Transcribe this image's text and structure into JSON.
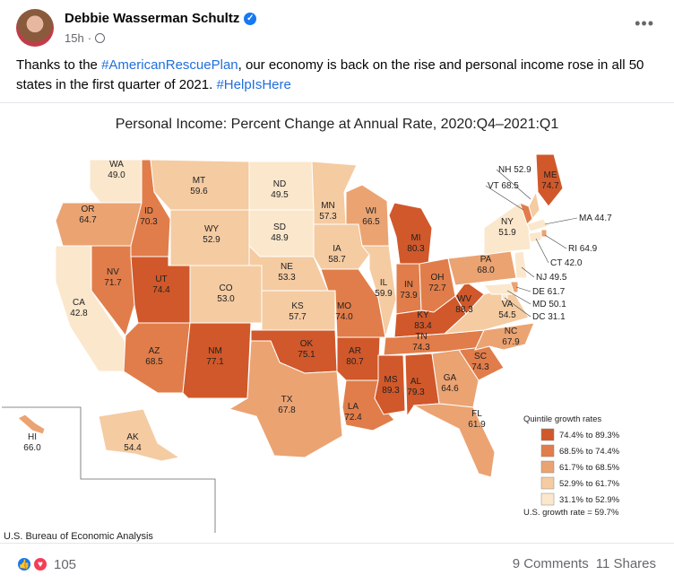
{
  "post": {
    "author": "Debbie Wasserman Schultz",
    "time": "15h",
    "more_label": "•••",
    "text_before": "Thanks to the ",
    "hashtag1": "#AmericanRescuePlan",
    "text_middle": ", our economy is back on the rise and personal income rose in all 50 states in the first quarter of 2021. ",
    "hashtag2": "#HelpIsHere"
  },
  "map": {
    "title": "Personal Income: Percent Change at Annual Rate, 2020:Q4–2021:Q1",
    "source": "U.S. Bureau of Economic Analysis",
    "legend_title": "Quintile growth rates",
    "legend": [
      {
        "label": "74.4% to 89.3%",
        "color": "#d0582a"
      },
      {
        "label": "68.5% to 74.4%",
        "color": "#e17d4a"
      },
      {
        "label": "61.7% to 68.5%",
        "color": "#eba372"
      },
      {
        "label": "52.9% to 61.7%",
        "color": "#f5cba2"
      },
      {
        "label": "31.1% to 52.9%",
        "color": "#fbe7cc"
      }
    ],
    "us_rate": "U.S. growth rate = 59.7%",
    "states": [
      {
        "abbr": "WA",
        "value": "49.0"
      },
      {
        "abbr": "OR",
        "value": "64.7"
      },
      {
        "abbr": "CA",
        "value": "42.8"
      },
      {
        "abbr": "NV",
        "value": "71.7"
      },
      {
        "abbr": "ID",
        "value": "70.3"
      },
      {
        "abbr": "MT",
        "value": "59.6"
      },
      {
        "abbr": "WY",
        "value": "52.9"
      },
      {
        "abbr": "UT",
        "value": "74.4"
      },
      {
        "abbr": "AZ",
        "value": "68.5"
      },
      {
        "abbr": "CO",
        "value": "53.0"
      },
      {
        "abbr": "NM",
        "value": "77.1"
      },
      {
        "abbr": "ND",
        "value": "49.5"
      },
      {
        "abbr": "SD",
        "value": "48.9"
      },
      {
        "abbr": "NE",
        "value": "53.3"
      },
      {
        "abbr": "KS",
        "value": "57.7"
      },
      {
        "abbr": "OK",
        "value": "75.1"
      },
      {
        "abbr": "TX",
        "value": "67.8"
      },
      {
        "abbr": "MN",
        "value": "57.3"
      },
      {
        "abbr": "IA",
        "value": "58.7"
      },
      {
        "abbr": "MO",
        "value": "74.0"
      },
      {
        "abbr": "AR",
        "value": "80.7"
      },
      {
        "abbr": "LA",
        "value": "72.4"
      },
      {
        "abbr": "WI",
        "value": "66.5"
      },
      {
        "abbr": "IL",
        "value": "59.9"
      },
      {
        "abbr": "MI",
        "value": "80.3"
      },
      {
        "abbr": "IN",
        "value": "73.9"
      },
      {
        "abbr": "OH",
        "value": "72.7"
      },
      {
        "abbr": "KY",
        "value": "83.4"
      },
      {
        "abbr": "TN",
        "value": "74.3"
      },
      {
        "abbr": "MS",
        "value": "89.3"
      },
      {
        "abbr": "AL",
        "value": "79.3"
      },
      {
        "abbr": "GA",
        "value": "64.6"
      },
      {
        "abbr": "FL",
        "value": "61.9"
      },
      {
        "abbr": "SC",
        "value": "74.3"
      },
      {
        "abbr": "NC",
        "value": "67.9"
      },
      {
        "abbr": "VA",
        "value": "54.5"
      },
      {
        "abbr": "WV",
        "value": "88.3"
      },
      {
        "abbr": "PA",
        "value": "68.0"
      },
      {
        "abbr": "NY",
        "value": "51.9"
      },
      {
        "abbr": "ME",
        "value": "74.7"
      },
      {
        "abbr": "AK",
        "value": "54.4"
      },
      {
        "abbr": "HI",
        "value": "66.0"
      }
    ],
    "callouts": [
      {
        "abbr": "NH",
        "value": "52.9"
      },
      {
        "abbr": "VT",
        "value": "68.5"
      },
      {
        "abbr": "MA",
        "value": "44.7"
      },
      {
        "abbr": "RI",
        "value": "64.9"
      },
      {
        "abbr": "CT",
        "value": "42.0"
      },
      {
        "abbr": "NJ",
        "value": "49.5"
      },
      {
        "abbr": "DE",
        "value": "61.7"
      },
      {
        "abbr": "MD",
        "value": "50.1"
      },
      {
        "abbr": "DC",
        "value": "31.1"
      }
    ]
  },
  "footer": {
    "reaction_count": "105",
    "comments": "9 Comments",
    "shares": "11 Shares"
  }
}
